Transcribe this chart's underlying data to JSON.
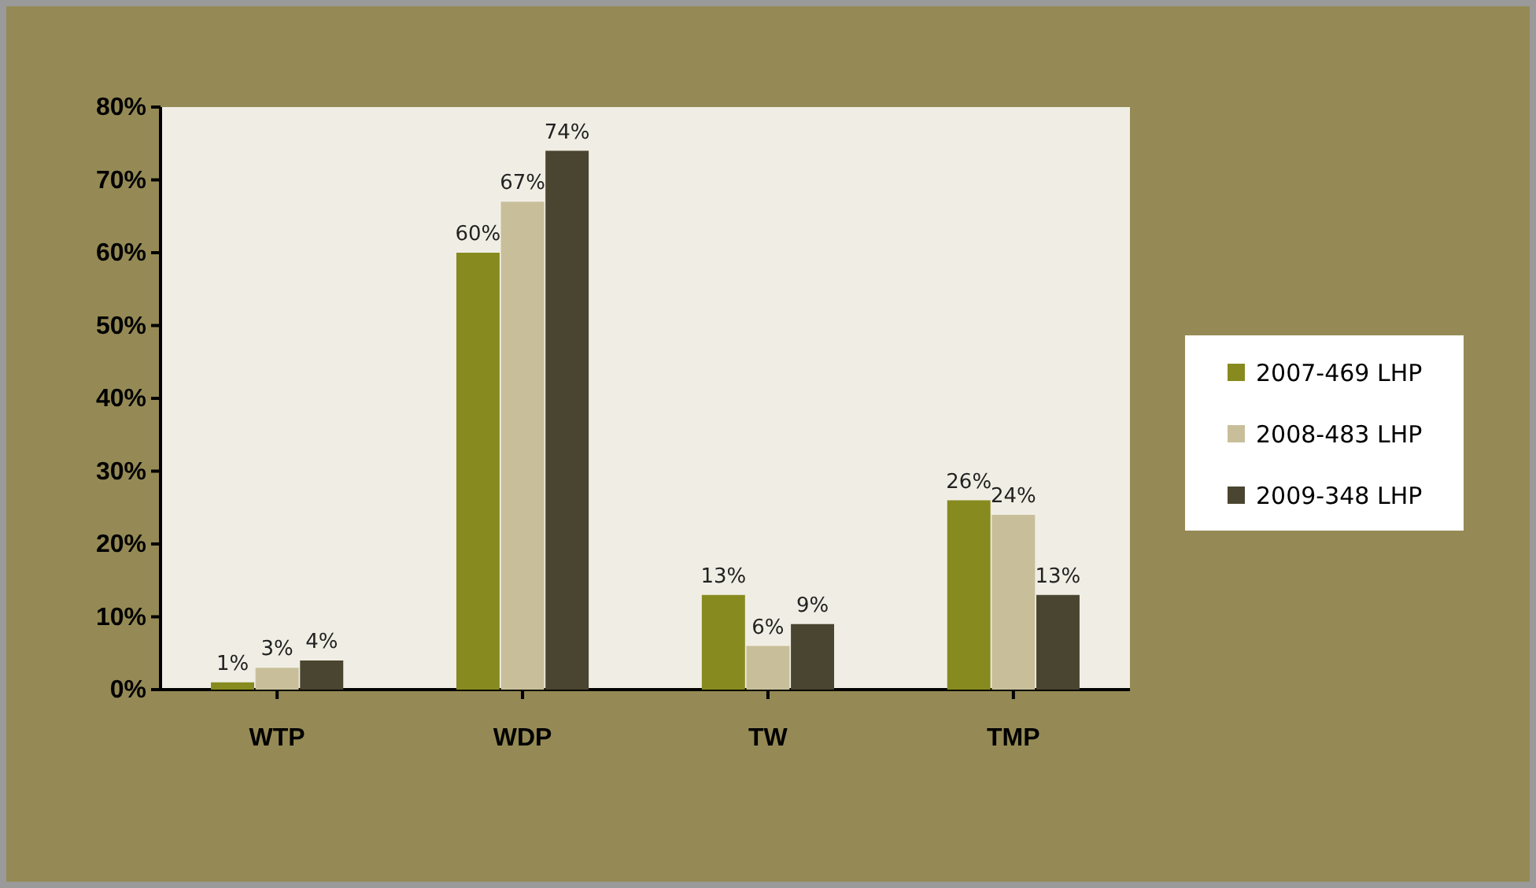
{
  "chart_data": {
    "type": "bar",
    "categories": [
      "WTP",
      "WDP",
      "TW",
      "TMP"
    ],
    "series": [
      {
        "name": "2007-469 LHP",
        "color": "#878a1e",
        "values": [
          1,
          60,
          13,
          26
        ],
        "value_labels": [
          "1%",
          "60%",
          "13%",
          "26%"
        ]
      },
      {
        "name": "2008-483 LHP",
        "color": "#c8bf9a",
        "values": [
          3,
          67,
          6,
          24
        ],
        "value_labels": [
          "3%",
          "67%",
          "6%",
          "24%"
        ]
      },
      {
        "name": "2009-348 LHP",
        "color": "#4a4530",
        "values": [
          4,
          74,
          9,
          13
        ],
        "value_labels": [
          "4%",
          "74%",
          "9%",
          "13%"
        ]
      }
    ],
    "ylim": [
      0,
      80
    ],
    "yticks": [
      {
        "value": 0,
        "label": "0%"
      },
      {
        "value": 10,
        "label": "10%"
      },
      {
        "value": 20,
        "label": "20%"
      },
      {
        "value": 30,
        "label": "30%"
      },
      {
        "value": 40,
        "label": "40%"
      },
      {
        "value": 50,
        "label": "50%"
      },
      {
        "value": 60,
        "label": "60%"
      },
      {
        "value": 70,
        "label": "70%"
      },
      {
        "value": 80,
        "label": "80%"
      }
    ],
    "grid": false,
    "legend": "right"
  }
}
